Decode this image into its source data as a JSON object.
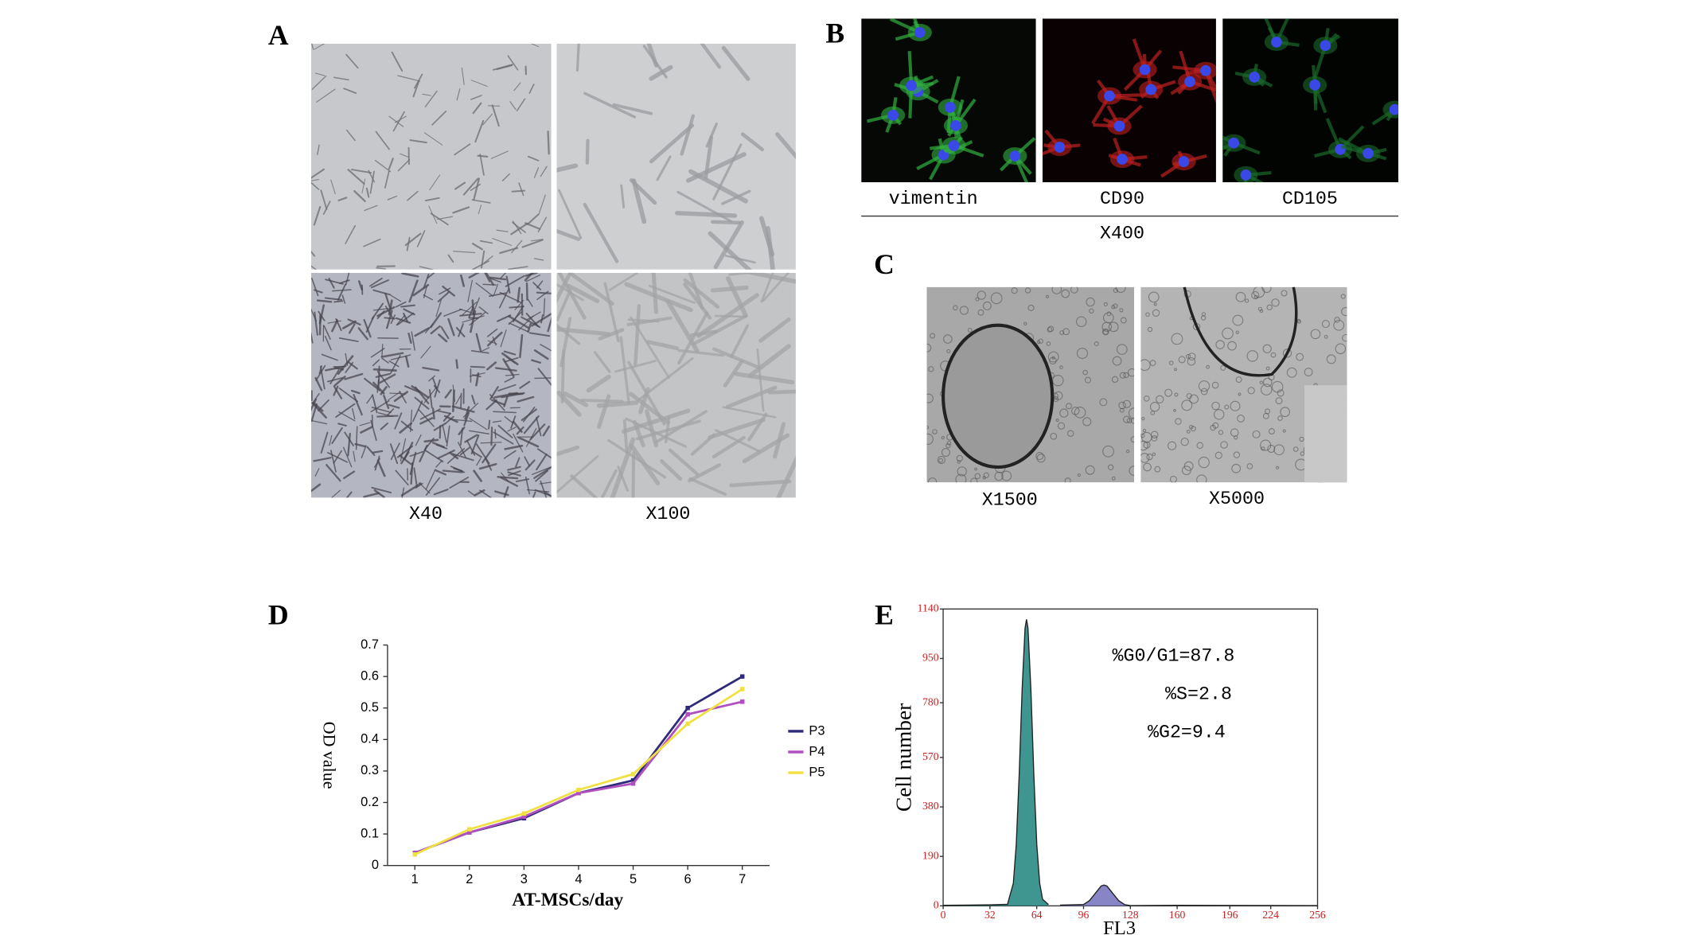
{
  "panels": {
    "A": {
      "label": "A",
      "captions": [
        "X40",
        "X100"
      ]
    },
    "B": {
      "label": "B",
      "captions": [
        "vimentin",
        "CD90",
        "CD105"
      ],
      "magnification": "X400"
    },
    "C": {
      "label": "C",
      "captions": [
        "X1500",
        "X5000"
      ]
    },
    "D": {
      "label": "D"
    },
    "E": {
      "label": "E"
    }
  },
  "chart_data": [
    {
      "type": "line",
      "x_label": "AT-MSCs/day",
      "y_label": "OD value",
      "x": [
        1,
        2,
        3,
        4,
        5,
        6,
        7
      ],
      "xlim": [
        0.5,
        7.5
      ],
      "xticks": [
        1,
        2,
        3,
        4,
        5,
        6,
        7
      ],
      "ylim": [
        0,
        0.7
      ],
      "yticks": [
        0,
        0.1,
        0.2,
        0.3,
        0.4,
        0.5,
        0.6,
        0.7
      ],
      "legend": "right",
      "series": [
        {
          "name": "P3",
          "color": "#2e2a7a",
          "values": [
            0.04,
            0.105,
            0.15,
            0.23,
            0.27,
            0.5,
            0.6
          ]
        },
        {
          "name": "P4",
          "color": "#b04fc0",
          "values": [
            0.04,
            0.105,
            0.155,
            0.23,
            0.26,
            0.48,
            0.52
          ]
        },
        {
          "name": "P5",
          "color": "#f0e040",
          "values": [
            0.035,
            0.115,
            0.165,
            0.24,
            0.29,
            0.45,
            0.56
          ]
        }
      ]
    },
    {
      "type": "area",
      "x_label": "FL3",
      "y_label": "Cell number",
      "x": [
        0,
        16,
        32,
        44,
        48,
        50,
        52,
        54,
        56,
        57,
        58,
        60,
        62,
        64,
        66,
        68,
        72,
        80,
        96,
        100,
        104,
        108,
        110,
        112,
        116,
        120,
        124,
        128,
        160,
        256
      ],
      "xlim": [
        0,
        256
      ],
      "xticks": [
        0,
        32,
        64,
        96,
        128,
        160,
        196,
        224,
        256
      ],
      "ylim": [
        0,
        1140
      ],
      "yticks": [
        0,
        190,
        380,
        570,
        780,
        950,
        1140
      ],
      "annotations": [
        "%G0/G1=87.8",
        "%S=2.8",
        "%G2=9.4"
      ],
      "series": [
        {
          "color": "#2a8a84",
          "values": [
            2,
            3,
            4,
            6,
            87,
            237,
            504,
            830,
            1066,
            1100,
            1066,
            830,
            504,
            237,
            87,
            25,
            5,
            null,
            null,
            null,
            null,
            null,
            null,
            null,
            null,
            null,
            null,
            null,
            null,
            null
          ]
        },
        {
          "color": "#7a78c0",
          "values": [
            null,
            null,
            null,
            null,
            null,
            null,
            null,
            null,
            null,
            null,
            null,
            null,
            null,
            null,
            null,
            null,
            null,
            3,
            5,
            20,
            48,
            76,
            80,
            76,
            48,
            20,
            5,
            1,
            2,
            1
          ]
        }
      ]
    }
  ]
}
